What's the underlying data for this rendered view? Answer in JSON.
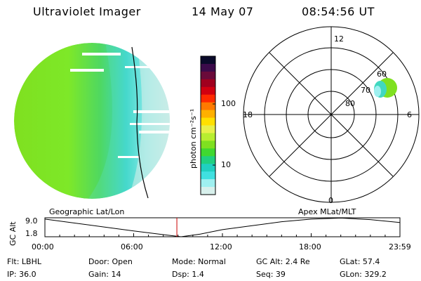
{
  "header": {
    "instrument": "Ultraviolet Imager",
    "date": "14 May 07",
    "time": "08:54:56 UT"
  },
  "colorbar": {
    "label": "photon cm⁻²s⁻¹",
    "ticks": [
      "100",
      "10"
    ],
    "colors": [
      "#0a0a2a",
      "#3b0a4a",
      "#6a0a3a",
      "#a0001e",
      "#d10010",
      "#ff2a00",
      "#ff7a00",
      "#ffb000",
      "#ffe000",
      "#e8f04a",
      "#b8ee30",
      "#7fe020",
      "#40d830",
      "#20d080",
      "#20d0c0",
      "#40e0e0",
      "#9ff0f0",
      "#d8f0ec"
    ]
  },
  "polar": {
    "mlt_labels": [
      "12",
      "18",
      "6",
      "0"
    ],
    "lat_labels": [
      "60",
      "70",
      "80"
    ]
  },
  "timeline": {
    "left_title": "Geographic Lat/Lon",
    "right_title": "Apex MLat/MLT",
    "y_axis_label": "GC Alt",
    "y_ticks": [
      "9.0",
      "1.8"
    ],
    "x_ticks": [
      "00:00",
      "06:00",
      "12:00",
      "18:00",
      "23:59"
    ],
    "marker_time": "08:54:56"
  },
  "chart_data": {
    "type": "line",
    "title": "",
    "xlabel": "",
    "ylabel": "GC Alt",
    "xlim_hours": [
      0,
      24
    ],
    "ylim_re": [
      1.8,
      9.0
    ],
    "x_hours": [
      0,
      2,
      4,
      6,
      8,
      9.2,
      10.5,
      12,
      14,
      16,
      18,
      20,
      22,
      24
    ],
    "y_re": [
      8.5,
      7.0,
      5.5,
      4.0,
      2.6,
      1.8,
      2.8,
      4.5,
      6.0,
      7.5,
      8.5,
      8.9,
      8.3,
      7.2
    ],
    "marker_hours": 8.92
  },
  "info": {
    "filter": "Flt: LBHL",
    "ip": "IP: 36.0",
    "door": "Door: Open",
    "gain": "Gain: 14",
    "mode": "Mode: Normal",
    "dsp": "Dsp:    1.4",
    "gc_alt": "GC Alt: 2.4 Re",
    "seq": "Seq: 39",
    "glat": "GLat:  57.4",
    "glon": "GLon: 329.2"
  }
}
